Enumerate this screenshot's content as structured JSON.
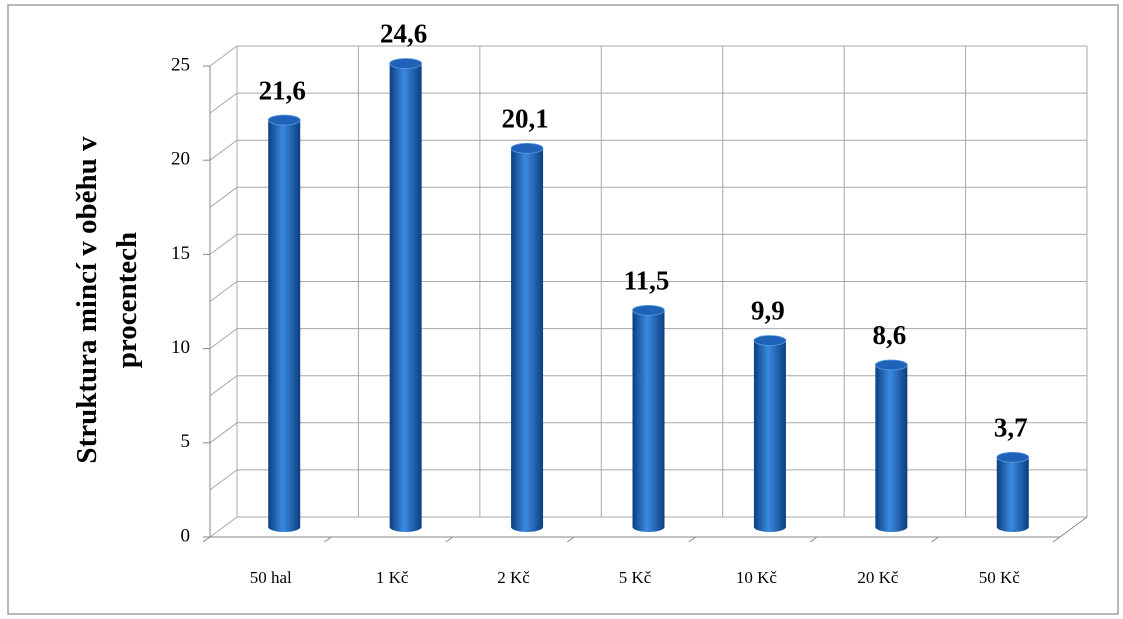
{
  "chart_data": {
    "type": "bar",
    "y_label": "Struktura mincí v oběhu v procentech",
    "categories": [
      "50 hal",
      "1 Kč",
      "2 Kč",
      "5 Kč",
      "10 Kč",
      "20 Kč",
      "50 Kč"
    ],
    "values": [
      21.6,
      24.6,
      20.1,
      11.5,
      9.9,
      8.6,
      3.7
    ],
    "value_labels": [
      "21,6",
      "24,6",
      "20,1",
      "11,5",
      "9,9",
      "8,6",
      "3,7"
    ],
    "color": "#1f62b8",
    "ylim": [
      0,
      25
    ],
    "yticks": [
      0,
      5,
      10,
      15,
      20,
      25
    ],
    "grid_minor_ticks": [
      2.5,
      7.5,
      12.5,
      17.5,
      22.5
    ],
    "grid": true
  }
}
